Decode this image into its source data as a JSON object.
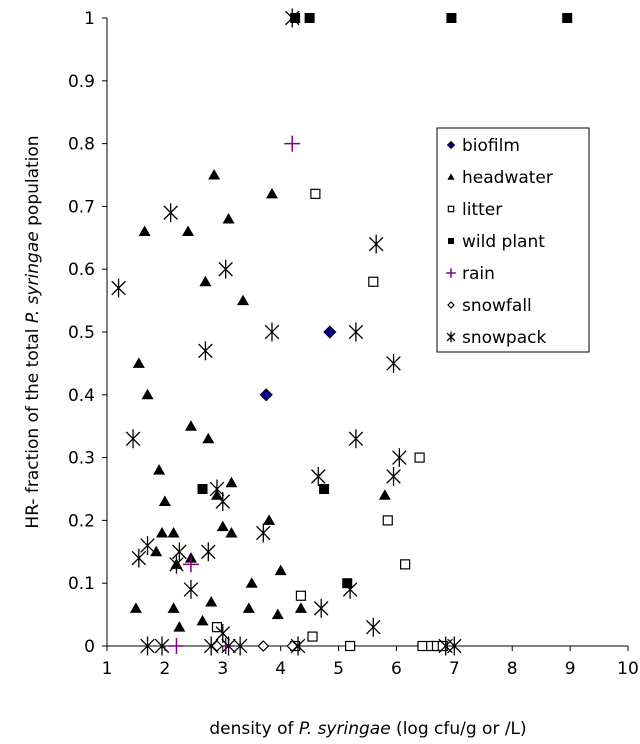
{
  "chart_data": {
    "type": "scatter",
    "title": "",
    "xlabel_parts": [
      "density of ",
      "P. syringae",
      " (log cfu/g or /L)"
    ],
    "ylabel_parts": [
      "HR- fraction of the total ",
      "P. syringae",
      " population"
    ],
    "xlim": [
      1,
      10
    ],
    "ylim": [
      0,
      1
    ],
    "xticks": [
      1,
      2,
      3,
      4,
      5,
      6,
      7,
      8,
      9,
      10
    ],
    "yticks": [
      0,
      0.1,
      0.2,
      0.3,
      0.4,
      0.5,
      0.6,
      0.7,
      0.8,
      0.9,
      1
    ],
    "ytick_labels": [
      "0",
      "0.1",
      "0.2",
      "0.3",
      "0.4",
      "0.5",
      "0.6",
      "0.7",
      "0.8",
      "0.9",
      "1"
    ],
    "grid": false,
    "legend_position": "right",
    "series": [
      {
        "name": "biofilm",
        "marker": "diamond-filled",
        "color": "#00008b",
        "points": [
          [
            3.75,
            0.4
          ],
          [
            4.85,
            0.5
          ]
        ]
      },
      {
        "name": "headwater",
        "marker": "triangle-filled",
        "color": "#000000",
        "points": [
          [
            1.55,
            0.45
          ],
          [
            1.65,
            0.66
          ],
          [
            1.7,
            0.4
          ],
          [
            1.5,
            0.06
          ],
          [
            1.85,
            0.15
          ],
          [
            1.9,
            0.28
          ],
          [
            1.95,
            0.18
          ],
          [
            2.0,
            0.23
          ],
          [
            2.15,
            0.18
          ],
          [
            2.15,
            0.06
          ],
          [
            2.2,
            0.13
          ],
          [
            2.25,
            0.03
          ],
          [
            2.4,
            0.66
          ],
          [
            2.45,
            0.35
          ],
          [
            2.45,
            0.14
          ],
          [
            2.65,
            0.04
          ],
          [
            2.7,
            0.58
          ],
          [
            2.75,
            0.33
          ],
          [
            2.8,
            0.07
          ],
          [
            2.85,
            0.75
          ],
          [
            2.9,
            0.24
          ],
          [
            3.0,
            0.19
          ],
          [
            3.1,
            0.68
          ],
          [
            3.15,
            0.26
          ],
          [
            3.15,
            0.18
          ],
          [
            3.35,
            0.55
          ],
          [
            3.45,
            0.06
          ],
          [
            3.5,
            0.1
          ],
          [
            3.8,
            0.2
          ],
          [
            3.85,
            0.72
          ],
          [
            3.95,
            0.05
          ],
          [
            4.0,
            0.12
          ],
          [
            4.35,
            0.06
          ],
          [
            5.8,
            0.24
          ]
        ]
      },
      {
        "name": "litter",
        "marker": "square-open",
        "color": "#000000",
        "points": [
          [
            2.9,
            0.03
          ],
          [
            4.25,
            0.0
          ],
          [
            4.35,
            0.08
          ],
          [
            4.55,
            0.015
          ],
          [
            4.6,
            0.72
          ],
          [
            5.2,
            0.0
          ],
          [
            5.6,
            0.58
          ],
          [
            5.85,
            0.2
          ],
          [
            6.15,
            0.13
          ],
          [
            6.4,
            0.3
          ],
          [
            6.45,
            0.0
          ],
          [
            6.6,
            0.0
          ],
          [
            6.7,
            0.0
          ],
          [
            6.8,
            0.0
          ]
        ]
      },
      {
        "name": "wild plant",
        "marker": "square-filled",
        "color": "#000000",
        "points": [
          [
            2.65,
            0.25
          ],
          [
            4.25,
            1.0
          ],
          [
            4.5,
            1.0
          ],
          [
            4.75,
            0.25
          ],
          [
            5.15,
            0.1
          ],
          [
            6.95,
            1.0
          ],
          [
            8.95,
            1.0
          ]
        ]
      },
      {
        "name": "rain",
        "marker": "plus",
        "color": "#800080",
        "points": [
          [
            2.2,
            0.0
          ],
          [
            2.45,
            0.13
          ],
          [
            3.05,
            0.0
          ],
          [
            4.2,
            0.8
          ]
        ]
      },
      {
        "name": "snowfall",
        "marker": "diamond-open",
        "color": "#000000",
        "points": [
          [
            2.9,
            0.0
          ],
          [
            3.7,
            0.0
          ],
          [
            4.2,
            0.0
          ]
        ]
      },
      {
        "name": "snowpack",
        "marker": "asterisk",
        "color": "#000000",
        "points": [
          [
            1.2,
            0.57
          ],
          [
            1.45,
            0.33
          ],
          [
            1.55,
            0.14
          ],
          [
            1.7,
            0.16
          ],
          [
            1.7,
            0.0
          ],
          [
            1.95,
            0.0
          ],
          [
            2.1,
            0.69
          ],
          [
            2.2,
            0.13
          ],
          [
            2.25,
            0.15
          ],
          [
            2.45,
            0.09
          ],
          [
            2.7,
            0.47
          ],
          [
            2.75,
            0.15
          ],
          [
            2.8,
            0.0
          ],
          [
            2.9,
            0.25
          ],
          [
            3.0,
            0.23
          ],
          [
            3.0,
            0.02
          ],
          [
            3.05,
            0.6
          ],
          [
            3.1,
            0.0
          ],
          [
            3.3,
            0.0
          ],
          [
            3.7,
            0.18
          ],
          [
            3.85,
            0.5
          ],
          [
            4.3,
            0.0
          ],
          [
            4.65,
            0.27
          ],
          [
            4.7,
            0.06
          ],
          [
            5.2,
            0.09
          ],
          [
            5.3,
            0.5
          ],
          [
            5.3,
            0.33
          ],
          [
            5.6,
            0.03
          ],
          [
            5.65,
            0.64
          ],
          [
            5.95,
            0.45
          ],
          [
            5.95,
            0.27
          ],
          [
            6.05,
            0.3
          ],
          [
            6.85,
            0.0
          ],
          [
            7.0,
            0.0
          ],
          [
            4.2,
            1.0
          ]
        ]
      }
    ]
  }
}
